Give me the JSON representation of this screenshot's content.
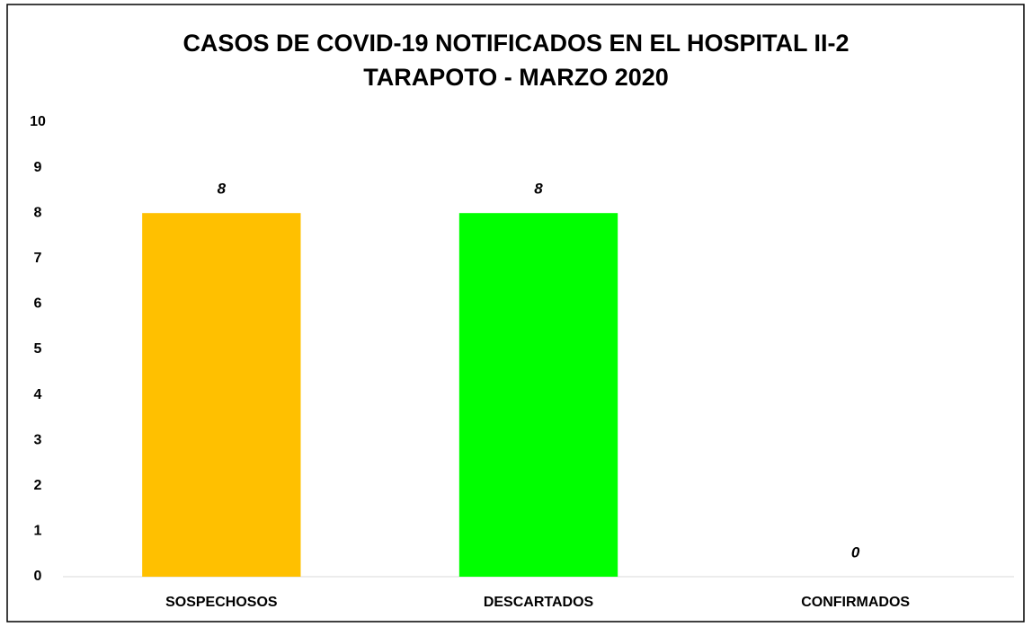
{
  "chart_data": {
    "type": "bar",
    "title": [
      "CASOS DE COVID-19 NOTIFICADOS EN EL HOSPITAL II-2",
      "TARAPOTO - MARZO 2020"
    ],
    "categories": [
      "SOSPECHOSOS",
      "DESCARTADOS",
      "CONFIRMADOS"
    ],
    "values": [
      8,
      8,
      0
    ],
    "colors": [
      "#ffc000",
      "#00ff00",
      "#4472c4"
    ],
    "ylim": [
      0,
      10
    ],
    "yticks": [
      0,
      1,
      2,
      3,
      4,
      5,
      6,
      7,
      8,
      9,
      10
    ],
    "grid": false
  }
}
